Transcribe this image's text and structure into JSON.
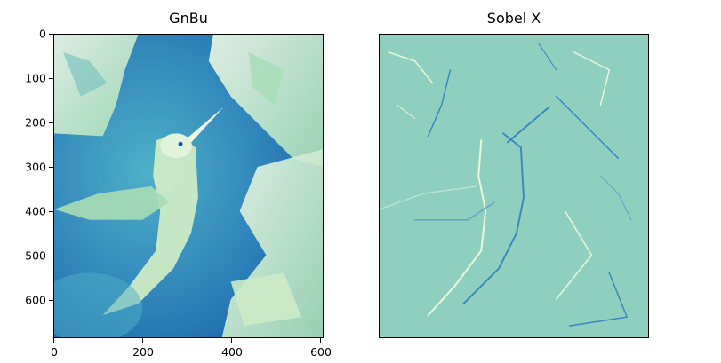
{
  "panels": [
    {
      "title": "GnBu",
      "colormap_colors": {
        "dark": "#0c5a9e",
        "mid": "#2d7fb8",
        "light": "#4fb0c8",
        "pale": "#ccebc5",
        "lightest": "#f0f9e8"
      },
      "y_ticks": [
        "0",
        "100",
        "200",
        "300",
        "400",
        "500",
        "600"
      ],
      "x_ticks": [
        "0",
        "200",
        "400",
        "600"
      ],
      "extent": {
        "x": [
          0,
          608
        ],
        "y": [
          685,
          0
        ]
      }
    },
    {
      "title": "Sobel X",
      "colormap_colors": {
        "background": "#8fcfbf",
        "positive": "#eaf6d8",
        "negative": "#3a88bf"
      },
      "axes_visible": false
    }
  ],
  "image_subject": "hummingbird-among-flowers"
}
